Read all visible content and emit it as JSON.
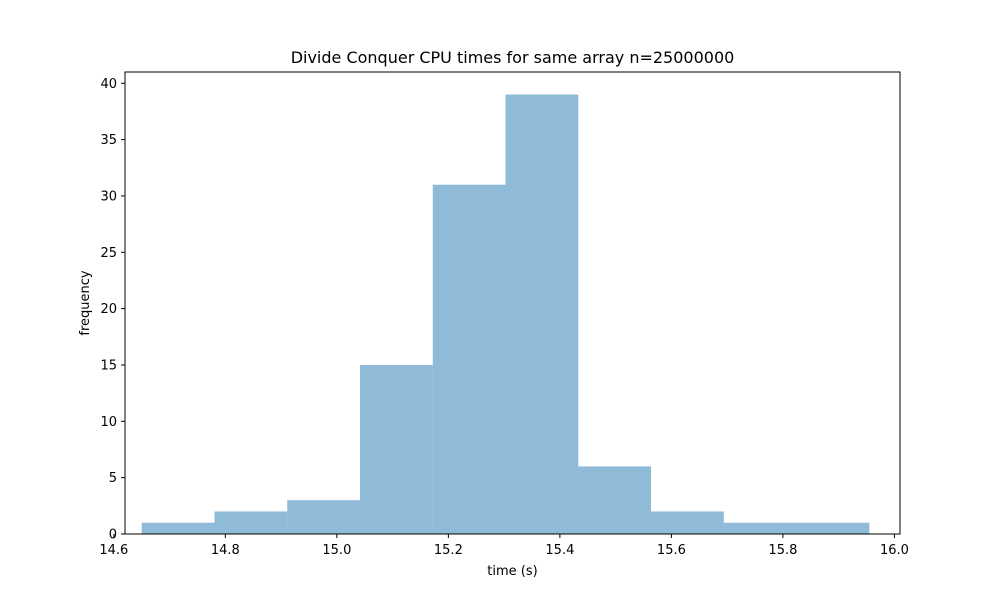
{
  "chart_data": {
    "type": "bar",
    "title": "Divide Conquer CPU times for same array n=25000000",
    "xlabel": "time (s)",
    "ylabel": "frequency",
    "xlim": [
      14.62,
      16.01
    ],
    "ylim": [
      0,
      41
    ],
    "bin_edges": [
      14.65,
      14.7805,
      14.911,
      15.0415,
      15.172,
      15.3025,
      15.433,
      15.5635,
      15.694,
      15.8245,
      15.955
    ],
    "values": [
      1,
      2,
      3,
      15,
      31,
      39,
      6,
      2,
      1,
      1
    ],
    "xticks": [
      14.6,
      14.8,
      15.0,
      15.2,
      15.4,
      15.6,
      15.8,
      16.0
    ],
    "xtick_labels": [
      "14.6",
      "14.8",
      "15.0",
      "15.2",
      "15.4",
      "15.6",
      "15.8",
      "16.0"
    ],
    "yticks": [
      0,
      5,
      10,
      15,
      20,
      25,
      30,
      35,
      40
    ],
    "ytick_labels": [
      "0",
      "5",
      "10",
      "15",
      "20",
      "25",
      "30",
      "35",
      "40"
    ],
    "bar_color": "#1f77b4",
    "bar_alpha": 0.5,
    "grid": false,
    "legend": false
  }
}
